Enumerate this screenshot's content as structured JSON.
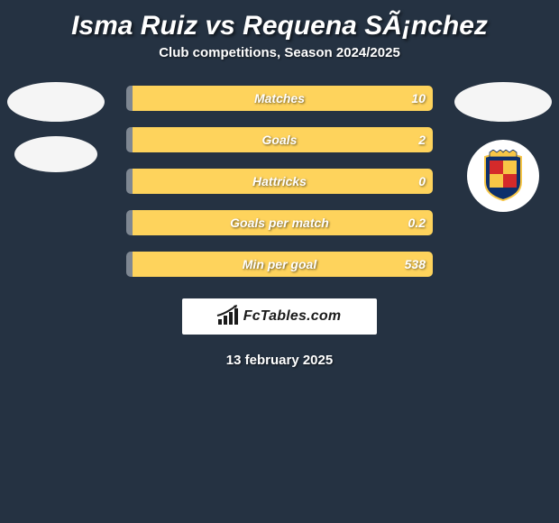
{
  "title": "Isma Ruiz vs Requena SÃ¡nchez",
  "subtitle": "Club competitions, Season 2024/2025",
  "date": "13 february 2025",
  "brand": "FcTables.com",
  "colors": {
    "background": "#253242",
    "left_segment": "#7e8792",
    "right_segment": "#fed35c",
    "left_text": "#ffffff",
    "right_text": "#ffffff",
    "emblem_fill": "#f5f5f5",
    "badge_bg": "#ffffff",
    "shield_primary": "#f7c646",
    "shield_blue": "#0d2f6b",
    "shield_red": "#d42a2a"
  },
  "bar_dimensions": {
    "total_width": 340,
    "height": 28,
    "gap": 18
  },
  "stats": [
    {
      "label": "Matches",
      "left_value": "",
      "right_value": "10",
      "left_pct": 2,
      "right_pct": 98
    },
    {
      "label": "Goals",
      "left_value": "",
      "right_value": "2",
      "left_pct": 2,
      "right_pct": 98
    },
    {
      "label": "Hattricks",
      "left_value": "",
      "right_value": "0",
      "left_pct": 2,
      "right_pct": 98
    },
    {
      "label": "Goals per match",
      "left_value": "",
      "right_value": "0.2",
      "left_pct": 2,
      "right_pct": 98
    },
    {
      "label": "Min per goal",
      "left_value": "",
      "right_value": "538",
      "left_pct": 2,
      "right_pct": 98
    }
  ]
}
